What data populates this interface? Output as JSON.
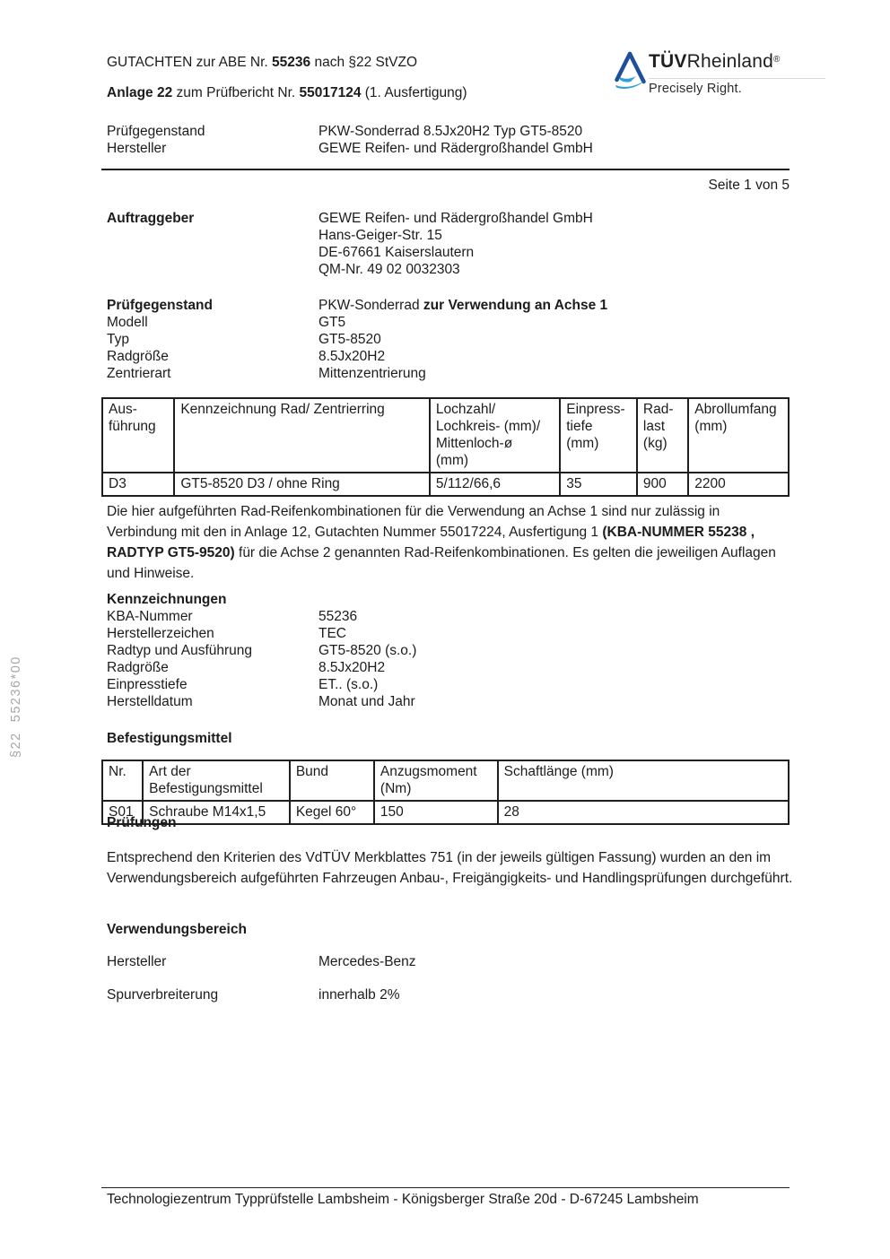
{
  "page": {
    "side_note": "§22  55236*00",
    "footer": "Technologiezentrum Typprüfstelle Lambsheim - Königsberger Straße 20d - D-67245 Lambsheim",
    "page_indicator": "Seite 1 von 5"
  },
  "logo": {
    "brand_bold": "TÜV",
    "brand_rest": "Rheinland",
    "registered": "®",
    "tagline": "Precisely Right.",
    "triangle_dark": "#1d4f9c",
    "triangle_light": "#2fa0d8"
  },
  "header": {
    "title_segments": [
      {
        "t": "GUTACHTEN zur ABE Nr. "
      },
      {
        "t": "55236",
        "b": 1
      },
      {
        "t": " nach §22 StVZO"
      }
    ],
    "anlage_segments": [
      {
        "t": "Anlage 22",
        "b": 1
      },
      {
        "t": " zum Prüfbericht Nr. "
      },
      {
        "t": "55017124",
        "b": 1
      },
      {
        "t": " (1. Ausfertigung)"
      }
    ],
    "meta_rows": [
      {
        "label": "Prüfgegenstand",
        "value": "PKW-Sonderrad 8.5Jx20H2 Typ GT5-8520"
      },
      {
        "label": "Hersteller",
        "value": "GEWE Reifen- und Rädergroßhandel GmbH"
      }
    ]
  },
  "client": {
    "label": "Auftraggeber",
    "lines": [
      "GEWE Reifen- und Rädergroßhandel GmbH",
      "Hans-Geiger-Str. 15",
      "DE-67661 Kaiserslautern",
      "QM-Nr. 49 02 0032303"
    ]
  },
  "test_object": {
    "label": "Prüfgegenstand",
    "value_segments": [
      {
        "t": "PKW-Sonderrad "
      },
      {
        "t": "zur Verwendung an Achse 1",
        "b": 1
      }
    ],
    "rows": [
      {
        "label": "Modell",
        "value": "GT5"
      },
      {
        "label": "Typ",
        "value": "GT5-8520"
      },
      {
        "label": "Radgröße",
        "value": "8.5Jx20H2"
      },
      {
        "label": "Zentrierart",
        "value": "Mittenzentrierung"
      }
    ]
  },
  "wheel_table": {
    "headers": [
      "Aus-\nführung",
      "Kennzeichnung Rad/ Zentrierring",
      "Lochzahl/\nLochkreis- (mm)/\nMittenloch-ø\n(mm)",
      "Einpress-\ntiefe\n(mm)",
      "Rad-\nlast\n(kg)",
      "Abrollumfang\n(mm)"
    ],
    "row": [
      "D3",
      "GT5-8520 D3 / ohne Ring",
      "5/112/66,6",
      "35",
      "900",
      "2200"
    ]
  },
  "note_segments": [
    {
      "t": "Die hier aufgeführten Rad-Reifenkombinationen für die Verwendung an Achse 1 sind nur zulässig in Verbindung mit den in Anlage 12, Gutachten Nummer 55017224, Ausfertigung 1 "
    },
    {
      "t": "(KBA-NUMMER 55238 , RADTYP GT5-9520)",
      "b": 1
    },
    {
      "t": " für die Achse 2 genannten Rad-Reifenkombinationen. Es gelten die jeweiligen Auflagen und Hinweise."
    }
  ],
  "markings": {
    "heading": "Kennzeichnungen",
    "rows": [
      {
        "label": "KBA-Nummer",
        "value": "55236"
      },
      {
        "label": "Herstellerzeichen",
        "value": "TEC"
      },
      {
        "label": "Radtyp und Ausführung",
        "value": "GT5-8520 (s.o.)"
      },
      {
        "label": "Radgröße",
        "value": "8.5Jx20H2"
      },
      {
        "label": "Einpresstiefe",
        "value": "ET.. (s.o.)"
      },
      {
        "label": "Herstelldatum",
        "value": "Monat und Jahr"
      }
    ]
  },
  "fasteners": {
    "heading": "Befestigungsmittel",
    "headers": [
      "Nr.",
      "Art der Befestigungsmittel",
      "Bund",
      "Anzugsmoment (Nm)",
      "Schaftlänge (mm)"
    ],
    "row": [
      "S01",
      "Schraube M14x1,5",
      "Kegel 60°",
      "150",
      "28"
    ]
  },
  "tests": {
    "heading": "Prüfungen",
    "text": "Entsprechend den Kriterien des VdTÜV Merkblattes 751 (in der jeweils gültigen Fassung) wurden an den im Verwendungsbereich aufgeführten Fahrzeugen Anbau-, Freigängigkeits- und Handlingsprüfungen durchgeführt."
  },
  "usage": {
    "heading": "Verwendungsbereich",
    "rows": [
      {
        "label": "Hersteller",
        "value": "Mercedes-Benz"
      },
      {
        "label": "Spurverbreiterung",
        "value": "innerhalb 2%"
      }
    ]
  }
}
